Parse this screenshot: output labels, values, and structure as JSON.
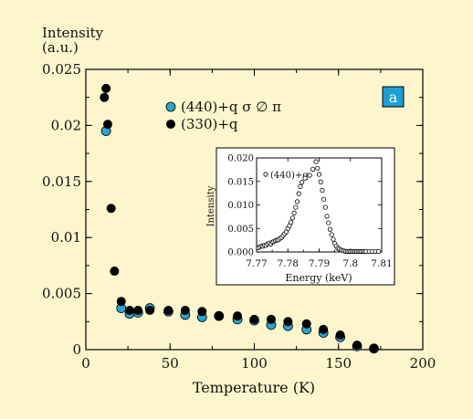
{
  "chart_data": [
    {
      "type": "scatter",
      "ylabel_lines": [
        "Intensity",
        "(a.u.)"
      ],
      "xlabel": "Temperature (K)",
      "xlim": [
        0,
        200
      ],
      "ylim": [
        0,
        0.025
      ],
      "x_ticks": [
        "0",
        "50",
        "100",
        "150",
        "200"
      ],
      "y_ticks": [
        "0",
        "0.005",
        "0.01",
        "0.015",
        "0.02",
        "0.025"
      ],
      "panel_badge": "a",
      "badge_color": "#1e9fd4",
      "series": [
        {
          "name": "(440)+q σ ∅ π",
          "color": "#2aa3cf",
          "points": [
            [
              12,
              0.0195
            ],
            [
              21,
              0.0037
            ],
            [
              26,
              0.0032
            ],
            [
              31,
              0.0033
            ],
            [
              38,
              0.0037
            ],
            [
              49,
              0.0034
            ],
            [
              59,
              0.0031
            ],
            [
              69,
              0.0029
            ],
            [
              79,
              0.003
            ],
            [
              90,
              0.0027
            ],
            [
              100,
              0.0026
            ],
            [
              110,
              0.0022
            ],
            [
              120,
              0.0021
            ],
            [
              131,
              0.0018
            ],
            [
              141,
              0.0015
            ],
            [
              151,
              0.0011
            ],
            [
              161,
              0.0003
            ],
            [
              171,
              0.0001
            ]
          ]
        },
        {
          "name": "(330)+q",
          "color": "#000000",
          "points": [
            [
              11,
              0.0225
            ],
            [
              12,
              0.0233
            ],
            [
              13,
              0.0201
            ],
            [
              15,
              0.0126
            ],
            [
              17,
              0.007
            ],
            [
              21,
              0.0043
            ],
            [
              26,
              0.0035
            ],
            [
              31,
              0.0035
            ],
            [
              38,
              0.0035
            ],
            [
              49,
              0.0035
            ],
            [
              59,
              0.0035
            ],
            [
              69,
              0.0034
            ],
            [
              79,
              0.003
            ],
            [
              90,
              0.003
            ],
            [
              100,
              0.0027
            ],
            [
              110,
              0.0027
            ],
            [
              120,
              0.0025
            ],
            [
              131,
              0.0023
            ],
            [
              141,
              0.0018
            ],
            [
              151,
              0.0013
            ],
            [
              161,
              0.0004
            ],
            [
              171,
              0.0001
            ]
          ]
        }
      ]
    },
    {
      "type": "scatter",
      "ylabel": "Intensity",
      "xlabel": "Energy (keV)",
      "xlim": [
        7.77,
        7.81
      ],
      "ylim": [
        0,
        0.02
      ],
      "x_ticks": [
        "7.77",
        "7.78",
        "7.79",
        "7.8",
        "7.81"
      ],
      "y_ticks": [
        "0.000",
        "0.005",
        "0.010",
        "0.015",
        "0.020"
      ],
      "legend": "(440)+q",
      "points": [
        [
          7.7705,
          0.0009
        ],
        [
          7.771,
          0.0011
        ],
        [
          7.7715,
          0.0013
        ],
        [
          7.772,
          0.0012
        ],
        [
          7.7725,
          0.0014
        ],
        [
          7.773,
          0.0014
        ],
        [
          7.7735,
          0.0017
        ],
        [
          7.774,
          0.0019
        ],
        [
          7.7745,
          0.0017
        ],
        [
          7.775,
          0.0021
        ],
        [
          7.7755,
          0.0022
        ],
        [
          7.776,
          0.0024
        ],
        [
          7.7765,
          0.0025
        ],
        [
          7.777,
          0.0026
        ],
        [
          7.7775,
          0.0029
        ],
        [
          7.778,
          0.0031
        ],
        [
          7.7785,
          0.0035
        ],
        [
          7.779,
          0.0039
        ],
        [
          7.7795,
          0.0043
        ],
        [
          7.78,
          0.005
        ],
        [
          7.7805,
          0.0056
        ],
        [
          7.781,
          0.0063
        ],
        [
          7.7815,
          0.0072
        ],
        [
          7.782,
          0.0083
        ],
        [
          7.7825,
          0.0095
        ],
        [
          7.783,
          0.0107
        ],
        [
          7.7835,
          0.0124
        ],
        [
          7.784,
          0.0139
        ],
        [
          7.7845,
          0.0148
        ],
        [
          7.7855,
          0.0157
        ],
        [
          7.787,
          0.0163
        ],
        [
          7.788,
          0.0176
        ],
        [
          7.789,
          0.0192
        ],
        [
          7.7895,
          0.0178
        ],
        [
          7.79,
          0.0165
        ],
        [
          7.7905,
          0.0149
        ],
        [
          7.791,
          0.0131
        ],
        [
          7.7915,
          0.0112
        ],
        [
          7.792,
          0.0095
        ],
        [
          7.7925,
          0.0076
        ],
        [
          7.793,
          0.0062
        ],
        [
          7.7935,
          0.0048
        ],
        [
          7.794,
          0.0037
        ],
        [
          7.7945,
          0.0027
        ],
        [
          7.795,
          0.0018
        ],
        [
          7.7955,
          0.0012
        ],
        [
          7.796,
          0.0008
        ],
        [
          7.7965,
          0.0006
        ],
        [
          7.797,
          0.0004
        ],
        [
          7.7975,
          0.0003
        ],
        [
          7.798,
          0.0002
        ],
        [
          7.7985,
          0.0001
        ],
        [
          7.799,
          0.0001
        ],
        [
          7.7995,
          0.0001
        ],
        [
          7.8,
          0.0001
        ],
        [
          7.8005,
          0.0001
        ],
        [
          7.801,
          0.0001
        ],
        [
          7.8015,
          0.0001
        ],
        [
          7.802,
          0.0001
        ],
        [
          7.8025,
          0.0001
        ],
        [
          7.803,
          0.0001
        ],
        [
          7.8035,
          0.0001
        ],
        [
          7.804,
          0.0001
        ],
        [
          7.8045,
          0.0001
        ],
        [
          7.805,
          0.0001
        ],
        [
          7.806,
          0.0001
        ],
        [
          7.807,
          0.0001
        ],
        [
          7.808,
          0.0001
        ],
        [
          7.809,
          0.0001
        ]
      ]
    }
  ]
}
